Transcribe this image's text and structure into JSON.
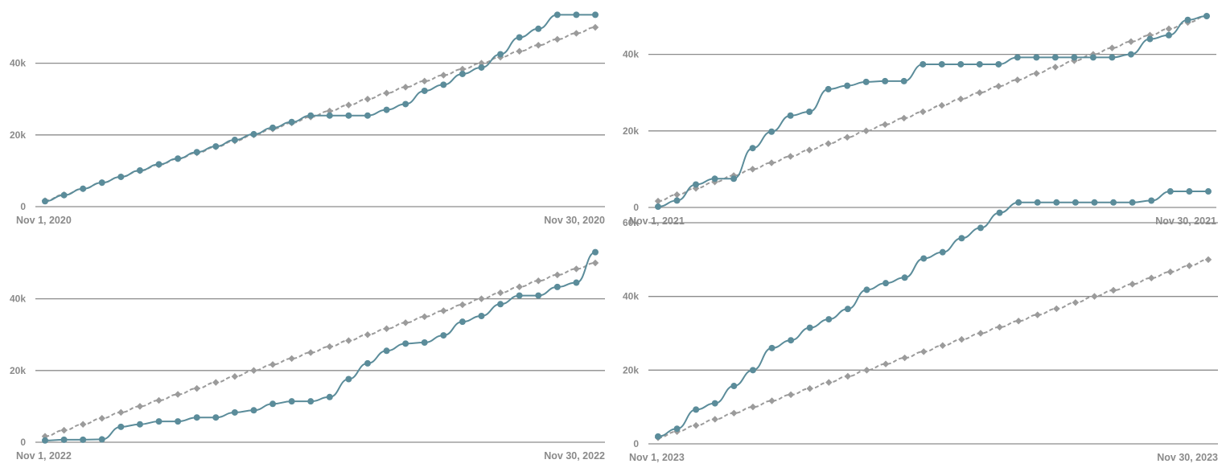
{
  "colors": {
    "actual": "#5b8c9a",
    "target": "#9b9b9b",
    "grid": "#8c8c8c",
    "axis": "#8c8c8c",
    "text": "#8a8a8a"
  },
  "chart_data": [
    {
      "type": "line",
      "x_start_label": "Nov 1, 2020",
      "x_end_label": "Nov 30, 2020",
      "ylim": [
        0,
        50000
      ],
      "yticks": [
        0,
        20000,
        40000
      ],
      "ytick_labels": [
        "0",
        "20k",
        "40k"
      ],
      "series": [
        {
          "name": "actual",
          "style": "solid",
          "values": [
            1500,
            3200,
            5000,
            6700,
            8300,
            10100,
            11800,
            13400,
            15200,
            16800,
            18600,
            20200,
            22000,
            23600,
            25400,
            25400,
            25400,
            25400,
            27000,
            28600,
            32300,
            34000,
            37000,
            38800,
            42500,
            47200,
            49600,
            53500,
            53500,
            53500
          ]
        },
        {
          "name": "target",
          "style": "dashed",
          "values": [
            1667,
            3333,
            5000,
            6667,
            8333,
            10000,
            11667,
            13333,
            15000,
            16667,
            18333,
            20000,
            21667,
            23333,
            25000,
            26667,
            28333,
            30000,
            31667,
            33333,
            35000,
            36667,
            38333,
            40000,
            41667,
            43333,
            45000,
            46667,
            48333,
            50000
          ]
        }
      ]
    },
    {
      "type": "line",
      "x_start_label": "Nov 1, 2021",
      "x_end_label": "Nov 30, 2021",
      "ylim": [
        0,
        50000
      ],
      "yticks": [
        0,
        20000,
        40000
      ],
      "ytick_labels": [
        "0",
        "20k",
        "40k"
      ],
      "series": [
        {
          "name": "actual",
          "style": "solid",
          "values": [
            200,
            1800,
            6000,
            7500,
            7500,
            15500,
            19800,
            24000,
            25000,
            30900,
            31800,
            32800,
            33000,
            33000,
            37400,
            37400,
            37400,
            37400,
            37400,
            39200,
            39200,
            39200,
            39200,
            39200,
            39200,
            40000,
            44000,
            45000,
            49000,
            50000
          ]
        },
        {
          "name": "target",
          "style": "dashed",
          "values": [
            1667,
            3333,
            5000,
            6667,
            8333,
            10000,
            11667,
            13333,
            15000,
            16667,
            18333,
            20000,
            21667,
            23333,
            25000,
            26667,
            28333,
            30000,
            31667,
            33333,
            35000,
            36667,
            38333,
            40000,
            41667,
            43333,
            45000,
            46667,
            48333,
            50000
          ]
        }
      ]
    },
    {
      "type": "line",
      "x_start_label": "Nov 1, 2022",
      "x_end_label": "Nov 30, 2022",
      "ylim": [
        0,
        50000
      ],
      "yticks": [
        0,
        20000,
        40000
      ],
      "ytick_labels": [
        "0",
        "20k",
        "40k"
      ],
      "series": [
        {
          "name": "actual",
          "style": "solid",
          "values": [
            500,
            700,
            700,
            800,
            4300,
            5000,
            5800,
            5800,
            6900,
            6900,
            8300,
            8900,
            10700,
            11400,
            11400,
            12600,
            17600,
            22000,
            25500,
            27500,
            27800,
            29800,
            33600,
            35200,
            38500,
            40900,
            40900,
            43300,
            44500,
            53000
          ]
        },
        {
          "name": "target",
          "style": "dashed",
          "values": [
            1667,
            3333,
            5000,
            6667,
            8333,
            10000,
            11667,
            13333,
            15000,
            16667,
            18333,
            20000,
            21667,
            23333,
            25000,
            26667,
            28333,
            30000,
            31667,
            33333,
            35000,
            36667,
            38333,
            40000,
            41667,
            43333,
            45000,
            46667,
            48333,
            50000
          ]
        }
      ]
    },
    {
      "type": "line",
      "x_start_label": "Nov 1, 2023",
      "x_end_label": "Nov 30, 2023",
      "ylim": [
        0,
        60000
      ],
      "yticks": [
        0,
        20000,
        40000,
        60000
      ],
      "ytick_labels": [
        "0",
        "20k",
        "40k",
        "60k"
      ],
      "series": [
        {
          "name": "actual",
          "style": "solid",
          "values": [
            2000,
            4100,
            9300,
            11000,
            15700,
            20000,
            26000,
            28100,
            31500,
            33800,
            36600,
            41800,
            43600,
            45100,
            50300,
            52000,
            55800,
            58600,
            62700,
            65500,
            65500,
            65500,
            65500,
            65500,
            65500,
            65500,
            66000,
            68500,
            68500,
            68500
          ]
        },
        {
          "name": "target",
          "style": "dashed",
          "values": [
            1667,
            3333,
            5000,
            6667,
            8333,
            10000,
            11667,
            13333,
            15000,
            16667,
            18333,
            20000,
            21667,
            23333,
            25000,
            26667,
            28333,
            30000,
            31667,
            33333,
            35000,
            36667,
            38333,
            40000,
            41667,
            43333,
            45000,
            46667,
            48333,
            50000
          ]
        }
      ]
    }
  ]
}
